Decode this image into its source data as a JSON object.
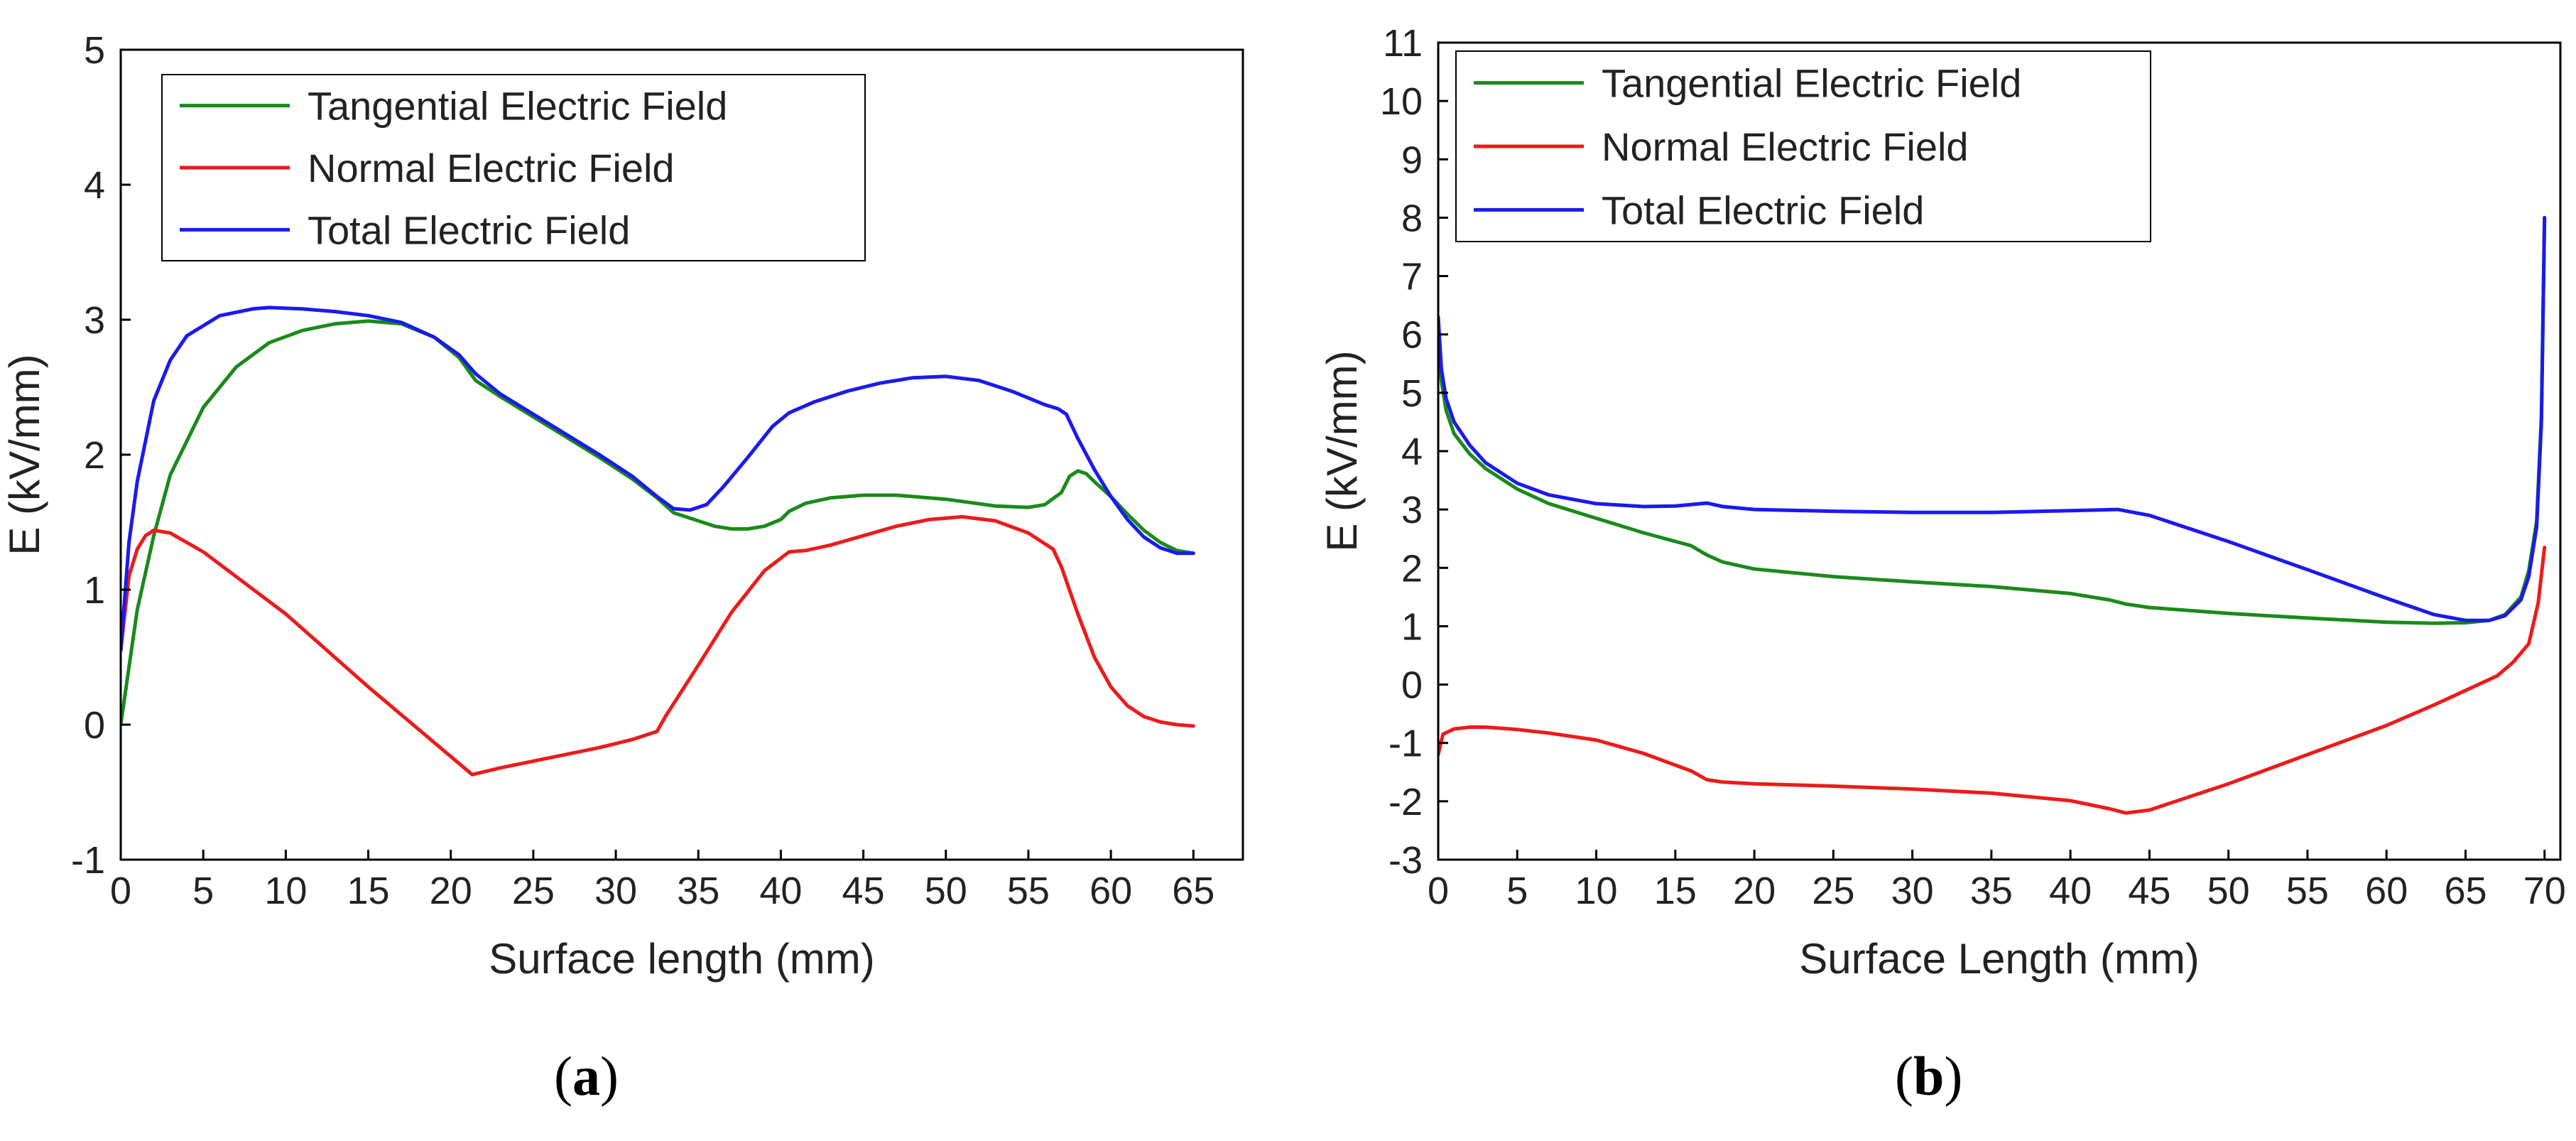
{
  "chart_data": [
    {
      "type": "line",
      "panel_label": "a",
      "xlabel": "Surface length (mm)",
      "ylabel": "E (kV/mm)",
      "xlim": [
        0,
        68
      ],
      "ylim": [
        -1,
        5
      ],
      "xticks": [
        0,
        5,
        10,
        15,
        20,
        25,
        30,
        35,
        40,
        45,
        50,
        55,
        60,
        65
      ],
      "yticks": [
        -1,
        0,
        1,
        2,
        3,
        4,
        5
      ],
      "legend_position": "top-left",
      "series": [
        {
          "name": "Tangential Electric Field",
          "color": "#1a8a1a",
          "x": [
            0,
            1,
            2,
            3,
            5,
            7,
            9,
            11,
            13,
            15,
            17,
            19,
            20.5,
            21.5,
            23,
            25,
            27,
            29,
            31,
            32.5,
            33.5,
            35,
            36,
            37,
            38,
            39,
            40,
            40.5,
            41.5,
            43,
            45,
            47,
            50,
            53,
            55,
            56,
            57,
            57.5,
            58,
            58.5,
            59,
            60,
            61,
            62,
            63,
            64,
            65
          ],
          "y": [
            0,
            0.85,
            1.4,
            1.85,
            2.35,
            2.65,
            2.83,
            2.92,
            2.97,
            2.99,
            2.97,
            2.87,
            2.72,
            2.55,
            2.43,
            2.28,
            2.13,
            1.98,
            1.82,
            1.68,
            1.57,
            1.51,
            1.47,
            1.45,
            1.45,
            1.47,
            1.52,
            1.58,
            1.64,
            1.68,
            1.7,
            1.7,
            1.67,
            1.62,
            1.61,
            1.63,
            1.72,
            1.84,
            1.88,
            1.86,
            1.8,
            1.69,
            1.56,
            1.44,
            1.35,
            1.29,
            1.27
          ]
        },
        {
          "name": "Normal Electric Field",
          "color": "#ee1a1a",
          "x": [
            0,
            0.5,
            1,
            1.5,
            2,
            3,
            5,
            10,
            15,
            21.3,
            23,
            25,
            27,
            29,
            31,
            32.5,
            33,
            35,
            37,
            39,
            40.5,
            41.5,
            43,
            45,
            47,
            49,
            51,
            53,
            55,
            56.5,
            57,
            58,
            59,
            60,
            61,
            62,
            63,
            64,
            65
          ],
          "y": [
            0.55,
            1.1,
            1.3,
            1.4,
            1.44,
            1.42,
            1.28,
            0.82,
            0.28,
            -0.37,
            -0.32,
            -0.27,
            -0.22,
            -0.17,
            -0.11,
            -0.05,
            0.06,
            0.44,
            0.83,
            1.14,
            1.28,
            1.29,
            1.33,
            1.4,
            1.47,
            1.52,
            1.54,
            1.51,
            1.42,
            1.3,
            1.17,
            0.82,
            0.5,
            0.28,
            0.14,
            0.06,
            0.02,
            0.0,
            -0.01
          ]
        },
        {
          "name": "Total Electric Field",
          "color": "#1a1aee",
          "x": [
            0,
            0.5,
            1,
            2,
            3,
            4,
            6,
            8,
            9,
            11,
            13,
            15,
            17,
            19,
            20.5,
            21.5,
            23,
            25,
            27,
            29,
            31,
            32.5,
            33.5,
            34.5,
            35.5,
            36.5,
            38,
            39.5,
            40.5,
            42,
            44,
            46,
            48,
            50,
            52,
            54,
            56,
            56.8,
            57.3,
            58,
            59,
            60,
            61,
            62,
            63,
            64,
            65
          ],
          "y": [
            0.55,
            1.35,
            1.8,
            2.4,
            2.7,
            2.88,
            3.03,
            3.08,
            3.09,
            3.08,
            3.06,
            3.03,
            2.98,
            2.87,
            2.74,
            2.6,
            2.45,
            2.3,
            2.15,
            2.0,
            1.84,
            1.69,
            1.6,
            1.59,
            1.63,
            1.76,
            1.98,
            2.21,
            2.31,
            2.39,
            2.47,
            2.53,
            2.57,
            2.58,
            2.55,
            2.47,
            2.37,
            2.34,
            2.3,
            2.12,
            1.89,
            1.69,
            1.52,
            1.39,
            1.31,
            1.27,
            1.27
          ]
        }
      ]
    },
    {
      "type": "line",
      "panel_label": "b",
      "xlabel": "Surface Length (mm)",
      "ylabel": "E (kV/mm)",
      "xlim": [
        0,
        71
      ],
      "ylim": [
        -3,
        11
      ],
      "xticks": [
        0,
        5,
        10,
        15,
        20,
        25,
        30,
        35,
        40,
        45,
        50,
        55,
        60,
        65,
        70
      ],
      "yticks": [
        -3,
        -2,
        -1,
        0,
        1,
        2,
        3,
        4,
        5,
        6,
        7,
        8,
        9,
        10,
        11
      ],
      "legend_position": "top-left",
      "series": [
        {
          "name": "Tangential Electric Field",
          "color": "#1a8a1a",
          "x": [
            0,
            0.2,
            0.5,
            1,
            2,
            3,
            5,
            7,
            10,
            13,
            16,
            17,
            18,
            20,
            25,
            30,
            35,
            40,
            42.5,
            43.5,
            45,
            50,
            55,
            60,
            63,
            65,
            66.5,
            67.5,
            68.5,
            69,
            69.5,
            69.8,
            70
          ],
          "y": [
            6.0,
            5.2,
            4.7,
            4.3,
            3.95,
            3.7,
            3.35,
            3.1,
            2.85,
            2.6,
            2.38,
            2.22,
            2.1,
            1.98,
            1.85,
            1.76,
            1.68,
            1.56,
            1.45,
            1.38,
            1.32,
            1.22,
            1.14,
            1.07,
            1.05,
            1.06,
            1.1,
            1.2,
            1.5,
            1.95,
            2.8,
            4.6,
            8.0
          ]
        },
        {
          "name": "Normal Electric Field",
          "color": "#ee1a1a",
          "x": [
            0,
            0.3,
            1,
            2,
            3,
            5,
            7,
            10,
            13,
            16,
            17,
            18,
            20,
            25,
            30,
            35,
            40,
            42.5,
            43.5,
            45,
            50,
            55,
            60,
            63,
            65,
            67,
            68,
            69,
            69.6,
            70
          ],
          "y": [
            -1.2,
            -0.85,
            -0.76,
            -0.73,
            -0.73,
            -0.77,
            -0.83,
            -0.95,
            -1.18,
            -1.48,
            -1.63,
            -1.67,
            -1.7,
            -1.74,
            -1.79,
            -1.86,
            -1.99,
            -2.13,
            -2.2,
            -2.15,
            -1.7,
            -1.2,
            -0.7,
            -0.35,
            -0.1,
            0.15,
            0.38,
            0.7,
            1.4,
            2.35
          ]
        },
        {
          "name": "Total Electric Field",
          "color": "#1a1aee",
          "x": [
            0,
            0.2,
            0.5,
            1,
            2,
            3,
            5,
            7,
            10,
            13,
            15,
            17,
            18,
            20,
            25,
            30,
            35,
            40,
            43,
            45,
            50,
            55,
            60,
            63,
            65,
            66.5,
            67.5,
            68.5,
            69,
            69.5,
            69.8,
            70
          ],
          "y": [
            6.3,
            5.4,
            4.9,
            4.5,
            4.1,
            3.8,
            3.45,
            3.25,
            3.1,
            3.05,
            3.06,
            3.11,
            3.05,
            3.0,
            2.97,
            2.95,
            2.95,
            2.98,
            3.0,
            2.9,
            2.45,
            1.97,
            1.48,
            1.2,
            1.1,
            1.1,
            1.18,
            1.45,
            1.85,
            2.7,
            4.5,
            8.0
          ]
        }
      ]
    }
  ],
  "panel_labels": {
    "a": {
      "open": "(",
      "letter": "a",
      "close": ")"
    },
    "b": {
      "open": "(",
      "letter": "b",
      "close": ")"
    }
  }
}
